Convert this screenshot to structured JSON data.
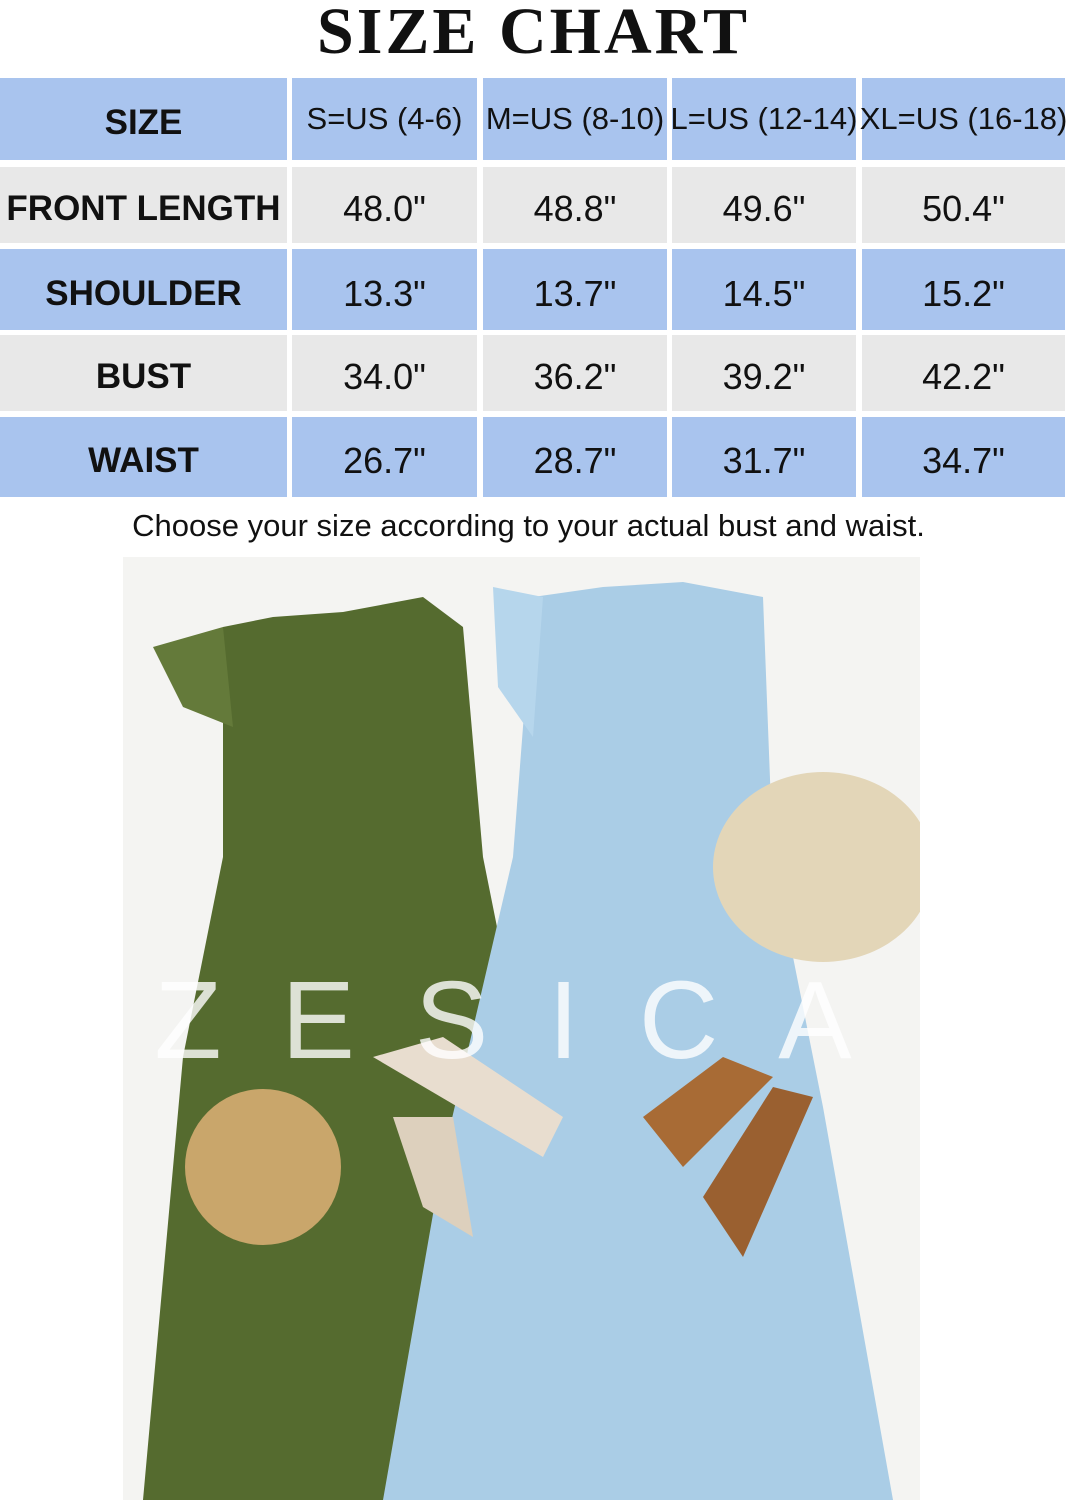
{
  "title": "SIZE CHART",
  "table": {
    "header": [
      "SIZE",
      "S=US (4-6)",
      "M=US (8-10)",
      "L=US (12-14)",
      "XL=US (16-18)"
    ],
    "rows": [
      [
        "FRONT LENGTH",
        "48.0\"",
        "48.8\"",
        "49.6\"",
        "50.4\""
      ],
      [
        "SHOULDER",
        "13.3\"",
        "13.7\"",
        "14.5\"",
        "15.2\""
      ],
      [
        "BUST",
        "34.0\"",
        "36.2\"",
        "39.2\"",
        "42.2\""
      ],
      [
        "WAIST",
        "26.7\"",
        "28.7\"",
        "31.7\"",
        "34.7\""
      ]
    ]
  },
  "note": "Choose your size according to your actual bust and waist.",
  "photo": {
    "watermark": "ZESICA"
  },
  "colors": {
    "header_blue": "#a9c4ee",
    "row_gray": "#e8e8e8",
    "dress_green": "#556b2f",
    "dress_blue": "#aacde6"
  }
}
